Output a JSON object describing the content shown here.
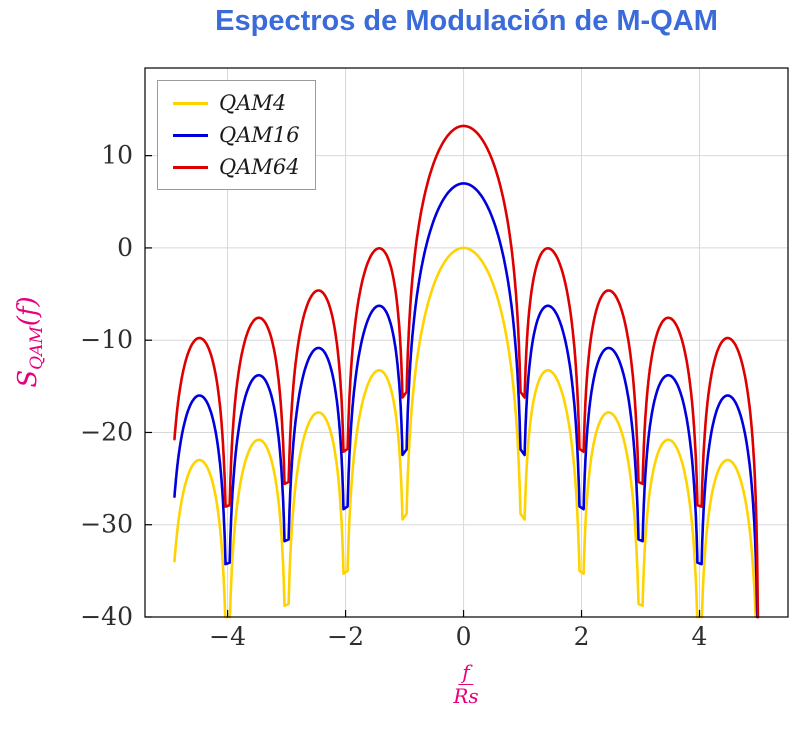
{
  "title": "Espectros de Modulación de M-QAM",
  "ylabel": {
    "base": "S",
    "sub": "QAM",
    "suffix": "(f)"
  },
  "xlabel": {
    "numerator": "f",
    "denominator": "Rs"
  },
  "colors": {
    "title": "#3A6BD8",
    "axis_label": "#E6007E",
    "tick_label": "#2e2e2e",
    "grid": "#d8d8d8",
    "frame": "#000000",
    "legend_border": "#9b9b9b",
    "background": "#ffffff"
  },
  "chart_data": {
    "type": "line",
    "title": "Espectros de Modulación de M-QAM",
    "xlabel": "f/Rs",
    "ylabel": "S_QAM(f)",
    "function": "S(f) = offset_db + 20*log10(|sinc(f/Rs)|), sinc(x)=sin(pi*x)/(pi*x); curve clipped below at -40 dB; spectral nulls at integer f/Rs",
    "x_domain": [
      -4.9,
      4.99
    ],
    "x_axis_range": [
      -5.4,
      5.5
    ],
    "y_axis_range": [
      -40,
      19.5
    ],
    "x_ticks": [
      -4,
      -2,
      0,
      2,
      4
    ],
    "y_ticks": [
      -40,
      -30,
      -20,
      -10,
      0,
      10
    ],
    "grid": "major",
    "legend_position": "top-left",
    "series": [
      {
        "name": "QAM4",
        "color": "#FFD300",
        "offset_db": 0,
        "peak_db": 0.0,
        "sidelobe_peaks": [
          {
            "x": 1.43,
            "y": -13.3
          },
          {
            "x": 2.46,
            "y": -17.8
          },
          {
            "x": 3.47,
            "y": -20.8
          },
          {
            "x": 4.48,
            "y": -23.0
          }
        ],
        "nulls_at": "f/Rs = ±1, ±2, ±3, ±4, ±5"
      },
      {
        "name": "QAM16",
        "color": "#0000DC",
        "offset_db": 6.99,
        "peak_db": 7.0,
        "sidelobe_peaks": [
          {
            "x": 1.43,
            "y": -6.3
          },
          {
            "x": 2.46,
            "y": -10.8
          },
          {
            "x": 3.47,
            "y": -13.8
          },
          {
            "x": 4.48,
            "y": -16.0
          }
        ],
        "nulls_at": "f/Rs = ±1, ±2, ±3, ±4, ±5"
      },
      {
        "name": "QAM64",
        "color": "#DE0000",
        "offset_db": 13.22,
        "peak_db": 13.2,
        "sidelobe_peaks": [
          {
            "x": 1.43,
            "y": -0.1
          },
          {
            "x": 2.46,
            "y": -4.6
          },
          {
            "x": 3.47,
            "y": -7.6
          },
          {
            "x": 4.48,
            "y": -9.8
          }
        ],
        "nulls_at": "f/Rs = ±1, ±2, ±3, ±4, ±5"
      }
    ]
  }
}
